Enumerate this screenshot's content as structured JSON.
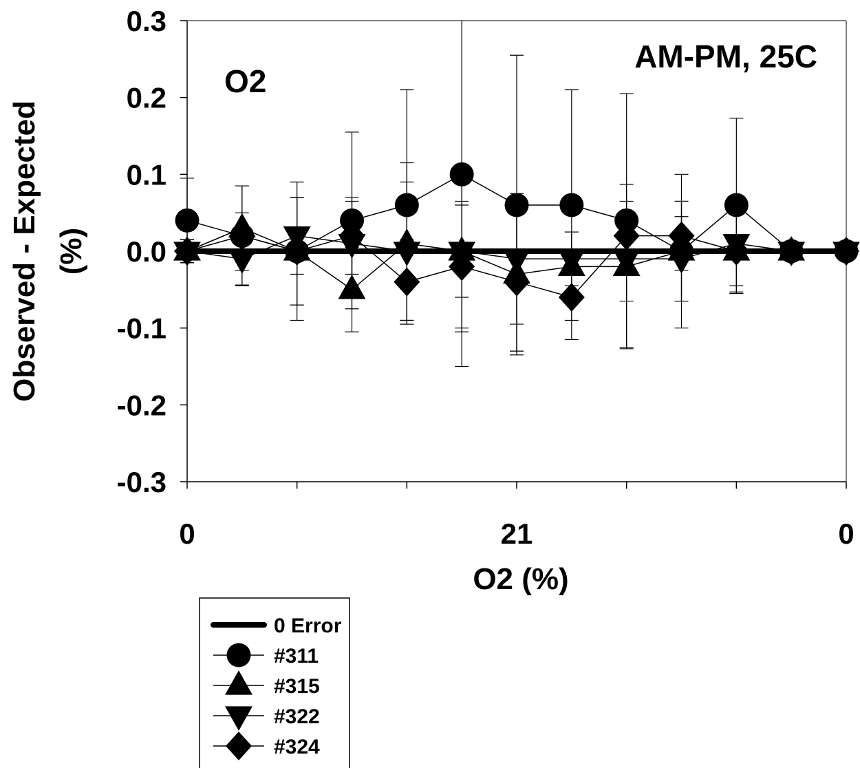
{
  "chart_data": {
    "type": "line",
    "title": "",
    "annotations": [
      "O2",
      "AM-PM, 25C"
    ],
    "xlabel": "O2 (%)",
    "ylabel_lines": [
      "Observed - Expected",
      "(%)"
    ],
    "x_tick_labels": [
      {
        "index": 0,
        "label": "0"
      },
      {
        "index": 6,
        "label": "21"
      },
      {
        "index": 12,
        "label": "0"
      }
    ],
    "x_range": [
      0,
      12
    ],
    "ylim": [
      -0.3,
      0.3
    ],
    "y_ticks": [
      {
        "value": 0.3,
        "label": "0.3"
      },
      {
        "value": 0.2,
        "label": "0.2"
      },
      {
        "value": 0.1,
        "label": "0.1"
      },
      {
        "value": 0.0,
        "label": "0.0"
      },
      {
        "value": -0.1,
        "label": "-0.1"
      },
      {
        "value": -0.2,
        "label": "-0.2"
      },
      {
        "value": -0.3,
        "label": "-0.3"
      }
    ],
    "grid": false,
    "legend_position": "bottom-left",
    "series": [
      {
        "name": "0 Error",
        "marker": "none",
        "x": [
          0,
          12
        ],
        "y": [
          0,
          0
        ]
      },
      {
        "name": "#311",
        "marker": "circle",
        "x": [
          0,
          1,
          2,
          3,
          4,
          5,
          6,
          7,
          8,
          9,
          10,
          11,
          12
        ],
        "y": [
          0.04,
          0.02,
          0.0,
          0.04,
          0.06,
          0.1,
          0.06,
          0.06,
          0.04,
          0.0,
          0.06,
          0.0,
          0.0
        ],
        "err": [
          0.055,
          0.065,
          0.09,
          0.115,
          0.15,
          0.25,
          0.195,
          0.15,
          0.165,
          0.1,
          0.113,
          0.0,
          0.0
        ]
      },
      {
        "name": "#315",
        "marker": "triangle-up",
        "x": [
          0,
          1,
          2,
          3,
          4,
          5,
          6,
          7,
          8,
          9,
          10,
          11
        ],
        "y": [
          0.0,
          0.03,
          0.0,
          -0.05,
          0.01,
          0.0,
          -0.03,
          -0.02,
          -0.02,
          0.0,
          0.0,
          0.0
        ],
        "err": [
          0.015,
          0.055,
          0.07,
          0.055,
          0.105,
          0.1,
          0.1,
          0.045,
          0.107,
          0.065,
          0.055,
          0.0
        ]
      },
      {
        "name": "#322",
        "marker": "triangle-down",
        "x": [
          0,
          1,
          2,
          3,
          4,
          5,
          6,
          7,
          8,
          9,
          10,
          11,
          12
        ],
        "y": [
          0.0,
          -0.01,
          0.02,
          0.01,
          0.0,
          0.0,
          -0.01,
          -0.01,
          -0.01,
          -0.01,
          0.01,
          0.0,
          0.0
        ],
        "err": [
          0.015,
          0.034,
          0.05,
          0.055,
          0.09,
          0.06,
          0.085,
          0.035,
          0.055,
          0.055,
          0.055,
          0.0,
          0.0
        ]
      },
      {
        "name": "#324",
        "marker": "diamond",
        "x": [
          0,
          1,
          2,
          3,
          4,
          5,
          6,
          7,
          8,
          9,
          10,
          11,
          12
        ],
        "y": [
          0.0,
          0.02,
          0.0,
          0.02,
          -0.04,
          -0.02,
          -0.04,
          -0.06,
          0.02,
          0.02,
          0.0,
          0.0,
          0.0
        ],
        "err": [
          0.015,
          0.03,
          0.07,
          0.05,
          0.055,
          0.085,
          0.09,
          0.055,
          0.045,
          0.045,
          0.055,
          0.0,
          0.0
        ]
      }
    ]
  }
}
